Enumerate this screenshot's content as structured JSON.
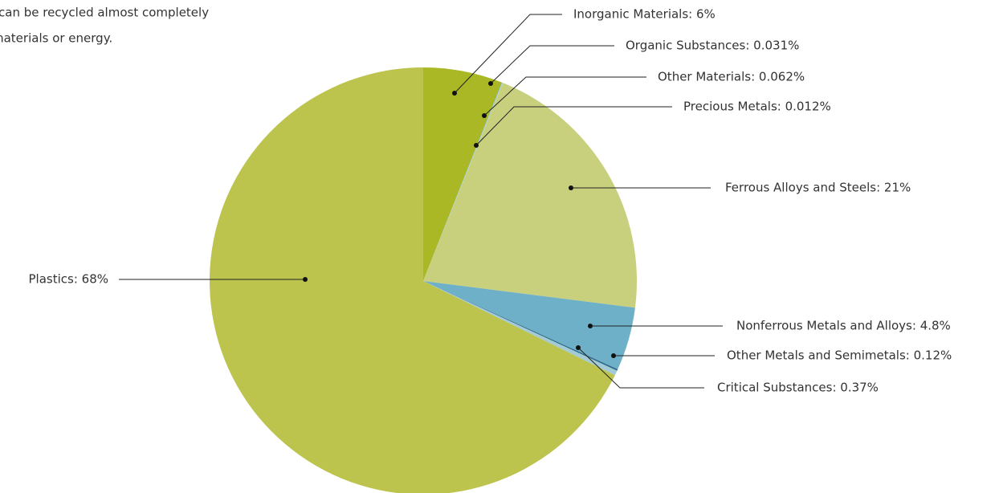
{
  "intro_lines": [
    "can be recycled almost completely",
    "materials or energy."
  ],
  "chart_data": {
    "type": "pie",
    "labels": [
      "Inorganic Materials: 6%",
      "Organic Substances: 0.031%",
      "Other Materials: 0.062%",
      "Precious Metals: 0.012%",
      "Ferrous Alloys and Steels: 21%",
      "Nonferrous Metals and Alloys: 4.8%",
      "Other Metals and Semimetals: 0.12%",
      "Critical Substances: 0.37%",
      "Plastics: 68%"
    ],
    "values": [
      6,
      0.031,
      0.062,
      0.012,
      21,
      4.8,
      0.12,
      0.37,
      68
    ],
    "colors": [
      "#a9b824",
      "#5f9a46",
      "#a9d0da",
      "#8ab6c6",
      "#c8d07e",
      "#6fb0c9",
      "#2b6a8c",
      "#a3cbd6",
      "#bcc44e"
    ]
  }
}
